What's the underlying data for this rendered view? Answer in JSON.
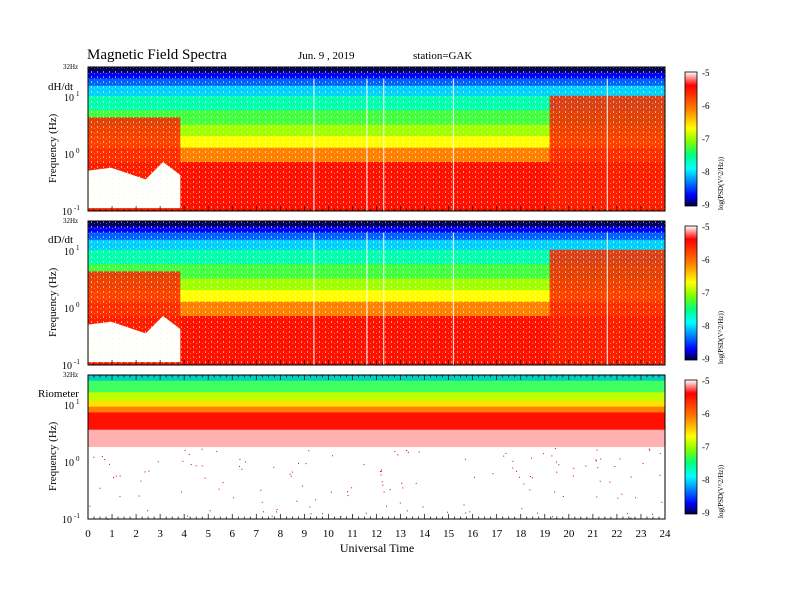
{
  "header": {
    "title": "Magnetic  Field  Spectra",
    "date": "Jun.  9  , 2019",
    "station": "station=GAK"
  },
  "colors": {
    "colormap": [
      "#000040",
      "#0000ff",
      "#0080ff",
      "#00ffff",
      "#00ff80",
      "#80ff00",
      "#ffff00",
      "#ff8000",
      "#ff0000",
      "#ffffff"
    ]
  },
  "chart_data": [
    {
      "type": "heatmap",
      "panel_label": "dH/dt",
      "ylabel": "Frequency  (Hz)",
      "y_top_label": "32Hz",
      "ylim": [
        0.1,
        32
      ],
      "y_scale": "log",
      "xlim": [
        0,
        24
      ],
      "colorbar": {
        "label": "log(PSD(V^2/Hz))",
        "ticks": [
          -5,
          -6,
          -7,
          -8,
          -9
        ]
      }
    },
    {
      "type": "heatmap",
      "panel_label": "dD/dt",
      "ylabel": "Frequency  (Hz)",
      "y_top_label": "32Hz",
      "ylim": [
        0.1,
        32
      ],
      "y_scale": "log",
      "xlim": [
        0,
        24
      ],
      "colorbar": {
        "label": "log(PSD(V^2/Hz))",
        "ticks": [
          -5,
          -6,
          -7,
          -8,
          -9
        ]
      }
    },
    {
      "type": "heatmap",
      "panel_label": "Riometer",
      "ylabel": "Frequency  (Hz)",
      "y_top_label": "32Hz",
      "ylim": [
        0.1,
        32
      ],
      "y_scale": "log",
      "xlim": [
        0,
        24
      ],
      "colorbar": {
        "label": "log(PSD(V^2/Hz))",
        "ticks": [
          -5,
          -6,
          -7,
          -8,
          -9
        ]
      }
    }
  ],
  "x_axis": {
    "label": "Universal  Time",
    "ticks": [
      "0",
      "1",
      "2",
      "3",
      "4",
      "5",
      "6",
      "7",
      "8",
      "9",
      "10",
      "11",
      "12",
      "13",
      "14",
      "15",
      "16",
      "17",
      "18",
      "19",
      "20",
      "21",
      "22",
      "23",
      "24"
    ]
  },
  "y_tick_labels": {
    "e1": "10",
    "e1_exp": "1",
    "e0": "10",
    "e0_exp": "0",
    "em1": "10",
    "em1_exp": "-1"
  }
}
